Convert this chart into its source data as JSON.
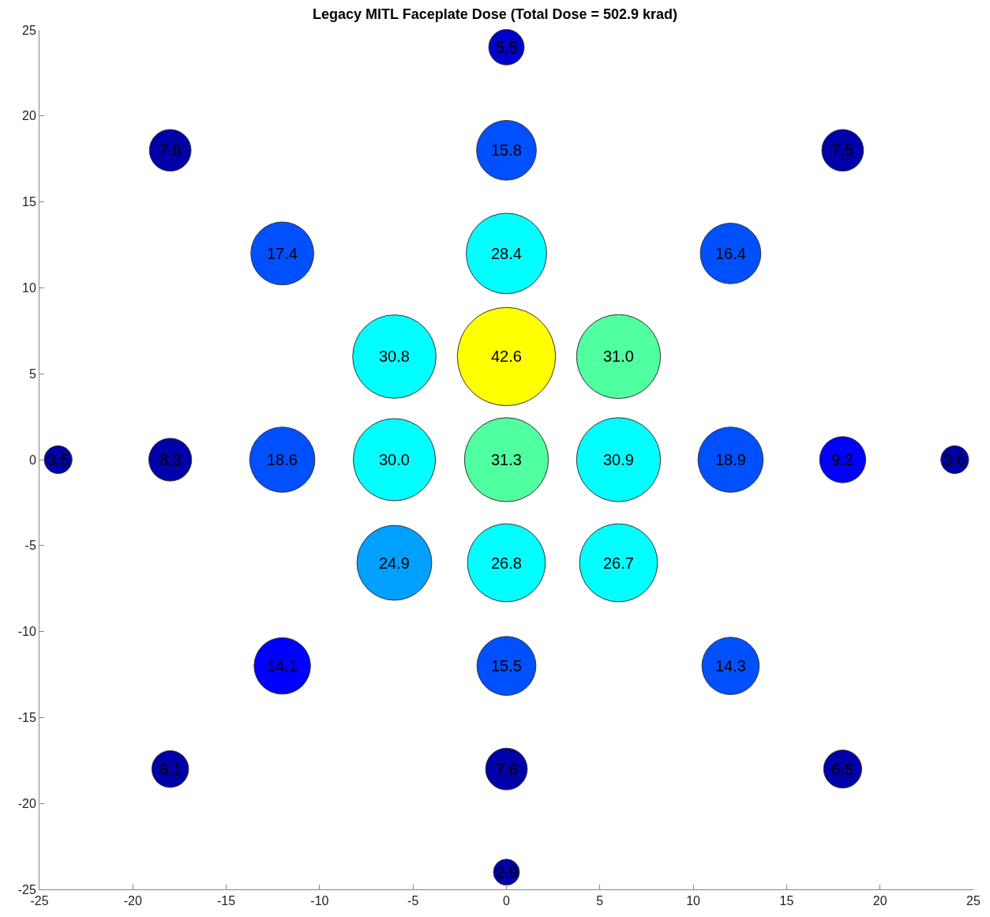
{
  "chart_data": {
    "type": "bubble",
    "title": "Legacy MITL Faceplate Dose (Total Dose = 502.9 krad)",
    "x": [
      0,
      -18,
      0,
      18,
      -12,
      0,
      12,
      -6,
      0,
      6,
      -24,
      -18,
      -12,
      -6,
      0,
      6,
      12,
      18,
      24,
      -6,
      0,
      6,
      -12,
      0,
      12,
      -18,
      0,
      18,
      0
    ],
    "values": [
      24,
      18,
      18,
      18,
      12,
      12,
      12,
      6,
      6,
      6,
      0,
      0,
      0,
      0,
      0,
      0,
      0,
      0,
      0,
      -6,
      -6,
      -6,
      -12,
      -12,
      -12,
      -18,
      -18,
      -18,
      -24
    ],
    "sizes": [
      0.13,
      0.18,
      0.37,
      0.18,
      0.41,
      0.67,
      0.38,
      0.72,
      1,
      0.73,
      0.08,
      0.19,
      0.44,
      0.7,
      0.73,
      0.73,
      0.44,
      0.22,
      0.08,
      0.58,
      0.63,
      0.63,
      0.33,
      0.36,
      0.34,
      0.14,
      0.18,
      0.15,
      0.07
    ],
    "annotations": [
      {
        "text": "5.5",
        "x": 0,
        "y": 24
      },
      {
        "text": "7.8",
        "x": -18,
        "y": 18
      },
      {
        "text": "15.8",
        "x": 0,
        "y": 18
      },
      {
        "text": "7.5",
        "x": 18,
        "y": 18
      },
      {
        "text": "17.4",
        "x": -12,
        "y": 12
      },
      {
        "text": "28.4",
        "x": 0,
        "y": 12
      },
      {
        "text": "16.4",
        "x": 12,
        "y": 12
      },
      {
        "text": "30.8",
        "x": -6,
        "y": 6
      },
      {
        "text": "42.6",
        "x": 0,
        "y": 6
      },
      {
        "text": "31.0",
        "x": 6,
        "y": 6
      },
      {
        "text": "3.5",
        "x": -24,
        "y": 0
      },
      {
        "text": "8.3",
        "x": -18,
        "y": 0
      },
      {
        "text": "18.6",
        "x": -12,
        "y": 0
      },
      {
        "text": "30.0",
        "x": -6,
        "y": 0
      },
      {
        "text": "31.3",
        "x": 0,
        "y": 0
      },
      {
        "text": "30.9",
        "x": 6,
        "y": 0
      },
      {
        "text": "18.9",
        "x": 12,
        "y": 0
      },
      {
        "text": "9.2",
        "x": 18,
        "y": 0
      },
      {
        "text": "3.6",
        "x": 24,
        "y": 0
      },
      {
        "text": "24.9",
        "x": -6,
        "y": -6
      },
      {
        "text": "26.8",
        "x": 0,
        "y": -6
      },
      {
        "text": "26.7",
        "x": 6,
        "y": -6
      },
      {
        "text": "14.1",
        "x": -12,
        "y": -12
      },
      {
        "text": "15.5",
        "x": 0,
        "y": -12
      },
      {
        "text": "14.3",
        "x": 12,
        "y": -12
      },
      {
        "text": "6.1",
        "x": -18,
        "y": -18
      },
      {
        "text": "7.6",
        "x": 0,
        "y": -18
      },
      {
        "text": "6.5",
        "x": 18,
        "y": -18
      },
      {
        "text": "2.9",
        "x": 0,
        "y": -24
      }
    ],
    "colors": [
      "#0000c8",
      "#0000a8",
      "#0050ff",
      "#0000a8",
      "#0050ff",
      "#00ffff",
      "#0050ff",
      "#00ffff",
      "#ffff00",
      "#50ffa0",
      "#0000a8",
      "#0000a8",
      "#0050ff",
      "#00ffff",
      "#50ffa0",
      "#00ffff",
      "#0050ff",
      "#0000ff",
      "#0000a8",
      "#00a0ff",
      "#00ffff",
      "#00ffff",
      "#0000ff",
      "#0050ff",
      "#0050ff",
      "#0000a8",
      "#0000a8",
      "#0000a8",
      "#0000a8"
    ],
    "xlim": [
      -25,
      25
    ],
    "ylim": [
      -25,
      25
    ],
    "xticks": [
      -25,
      -20,
      -15,
      -10,
      -5,
      0,
      5,
      10,
      15,
      20,
      25
    ],
    "yticks": [
      -25,
      -20,
      -15,
      -10,
      -5,
      0,
      5,
      10,
      15,
      20,
      25
    ]
  }
}
